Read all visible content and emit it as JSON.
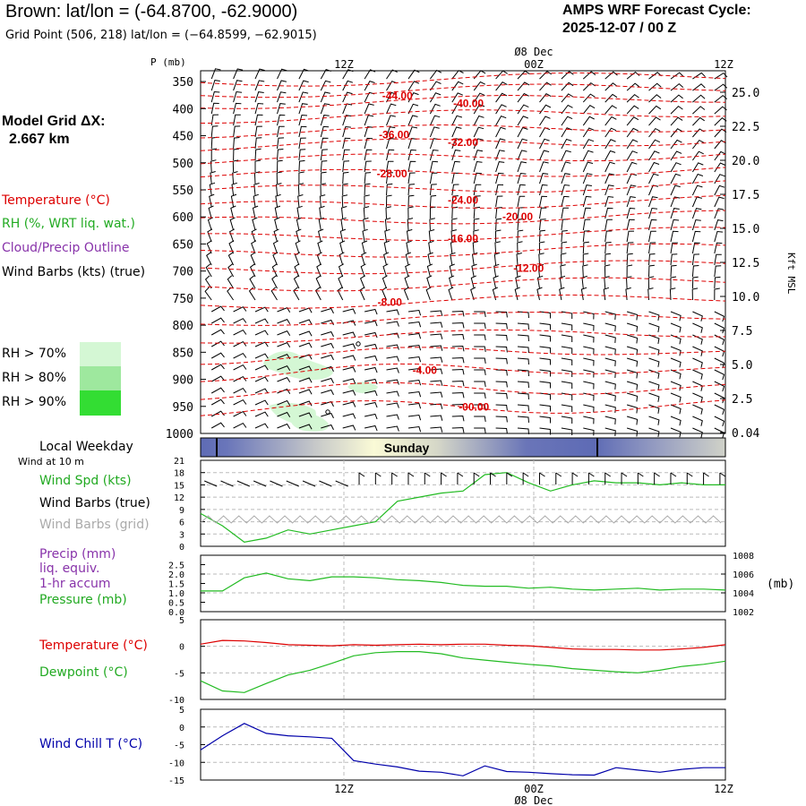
{
  "header": {
    "title": "Brown:  lat/lon = (-64.8700, -62.9000)",
    "grid_point": "Grid Point (506, 218) lat/lon = (−64.8599, −62.9015)",
    "cycle_line1": "AMPS WRF Forecast Cycle:",
    "cycle_line2": "2025-12-07 / 00  Z",
    "model_grid_line1": "Model Grid ΔX:",
    "model_grid_line2": "2.667 km"
  },
  "legend": {
    "temperature": "Temperature (°C)",
    "rh": "RH (%, WRT liq. wat.)",
    "cloud": "Cloud/Precip Outline",
    "wind_barbs": "Wind Barbs (kts) (true)",
    "rh70": "RH > 70%",
    "rh80": "RH > 80%",
    "rh90": "RH > 90%",
    "rh_colors": [
      "#d4f7d4",
      "#9ee89e",
      "#33dd33"
    ]
  },
  "time_axis": {
    "top_ticks": [
      "12Z",
      "00Z",
      "12Z"
    ],
    "date_label": "Ø8 Dec",
    "p_label": "P (mb)",
    "kft_label": "Kft MSL"
  },
  "weekday": {
    "label": "Local Weekday",
    "day": "Sunday",
    "wind_at": "Wind at 10 m"
  },
  "panel_labels": {
    "wind_spd": "Wind Spd (kts)",
    "wind_barbs_true": "Wind Barbs (true)",
    "wind_barbs_grid": "Wind Barbs (grid)",
    "precip": "Precip (mm)",
    "liq": "liq. equiv.",
    "accum": "1-hr accum",
    "pressure": "Pressure (mb)",
    "pressure_unit": "(mb)",
    "temperature": "Temperature (°C)",
    "dewpoint": "Dewpoint (°C)",
    "windchill": "Wind Chill T (°C)"
  },
  "colors": {
    "temp": "#dd0000",
    "green": "#22bb22",
    "blue": "#0000aa",
    "purple": "#8833aa",
    "gray": "#aaaaaa"
  },
  "chart_data": [
    {
      "type": "line",
      "name": "cross-section",
      "pressure_ticks": [
        "350",
        "400",
        "450",
        "500",
        "550",
        "600",
        "650",
        "700",
        "750",
        "800",
        "850",
        "900",
        "950",
        "1000"
      ],
      "kft_ticks": [
        "25.0",
        "22.5",
        "20.0",
        "17.5",
        "15.0",
        "12.5",
        "10.0",
        "7.5",
        "5.0",
        "2.5",
        "0.04"
      ],
      "isotherm_labels": [
        {
          "text": "-44.00",
          "hour": 18,
          "p": 383
        },
        {
          "text": "-40.00",
          "hour": 24.5,
          "p": 397
        },
        {
          "text": "-36.00",
          "hour": 17.7,
          "p": 455
        },
        {
          "text": "-32.00",
          "hour": 24,
          "p": 469
        },
        {
          "text": "-28.00",
          "hour": 17.5,
          "p": 527
        },
        {
          "text": "-24.00",
          "hour": 24,
          "p": 576
        },
        {
          "text": "-20.00",
          "hour": 29,
          "p": 606
        },
        {
          "text": "-16.00",
          "hour": 24,
          "p": 647
        },
        {
          "text": "-12.00",
          "hour": 30,
          "p": 701
        },
        {
          "text": "-8.00",
          "hour": 17.3,
          "p": 764
        },
        {
          "text": "-4.00",
          "hour": 20.5,
          "p": 890
        },
        {
          "text": "-00.00",
          "hour": 25,
          "p": 958
        }
      ]
    },
    {
      "type": "line",
      "name": "wind",
      "ylim": [
        0,
        21
      ],
      "y_ticks": [
        "0",
        "3",
        "6",
        "9",
        "12",
        "15",
        "18",
        "21"
      ],
      "hours": [
        0,
        2,
        4,
        6,
        8,
        10,
        12,
        14,
        16,
        18,
        20,
        22,
        24,
        26,
        28,
        30,
        32,
        34,
        36,
        38,
        40,
        42,
        44,
        46,
        48
      ],
      "values": [
        8,
        5,
        1,
        2,
        4,
        3,
        4,
        5,
        6,
        11,
        12,
        13,
        13.5,
        17.5,
        18,
        15.5,
        13.5,
        15,
        16,
        15.5,
        15.5,
        15,
        15.5,
        15,
        15
      ]
    },
    {
      "type": "line",
      "name": "pressure",
      "ylim": [
        1002,
        1008
      ],
      "y_ticks_left": [
        "0.0",
        "0.5",
        "1.0",
        "1.5",
        "2.0",
        "2.5"
      ],
      "y_ticks_right": [
        "1002",
        "1004",
        "1006",
        "1008"
      ],
      "hours": [
        0,
        2,
        4,
        6,
        8,
        10,
        12,
        14,
        16,
        18,
        20,
        22,
        24,
        26,
        28,
        30,
        32,
        34,
        36,
        38,
        40,
        42,
        44,
        46,
        48
      ],
      "values": [
        1004.2,
        1004.2,
        1005.6,
        1006.1,
        1005.5,
        1005.3,
        1005.7,
        1005.7,
        1005.6,
        1005.4,
        1005.3,
        1005.1,
        1004.8,
        1004.7,
        1004.7,
        1004.5,
        1004.6,
        1004.4,
        1004.3,
        1004.4,
        1004.5,
        1004.3,
        1004.4,
        1004.4,
        1004.3
      ]
    },
    {
      "type": "line",
      "name": "temperature-dewpoint",
      "ylim": [
        -10,
        5
      ],
      "y_ticks": [
        "5",
        "0",
        "-5",
        "-10"
      ],
      "hours": [
        0,
        2,
        4,
        6,
        8,
        10,
        12,
        14,
        16,
        18,
        20,
        22,
        24,
        26,
        28,
        30,
        32,
        34,
        36,
        38,
        40,
        42,
        44,
        46,
        48
      ],
      "series": [
        {
          "name": "Temperature",
          "values": [
            0.4,
            1.1,
            1.0,
            0.7,
            0.3,
            0.2,
            0.1,
            0.3,
            0.2,
            0.3,
            0.4,
            0.3,
            0.4,
            0.4,
            0.2,
            0.1,
            -0.2,
            -0.5,
            -0.6,
            -0.6,
            -0.7,
            -0.7,
            -0.5,
            -0.2,
            0.3
          ]
        },
        {
          "name": "Dewpoint",
          "values": [
            -6.5,
            -8.4,
            -8.7,
            -7.0,
            -5.4,
            -4.5,
            -3.2,
            -1.8,
            -1.2,
            -1.0,
            -1.0,
            -1.4,
            -2.2,
            -2.6,
            -3.0,
            -3.4,
            -3.7,
            -4.2,
            -4.5,
            -4.8,
            -5.0,
            -4.5,
            -3.8,
            -3.4,
            -2.8
          ]
        }
      ]
    },
    {
      "type": "line",
      "name": "wind-chill",
      "ylim": [
        -15,
        5
      ],
      "y_ticks": [
        "5",
        "0",
        "-5",
        "-10",
        "-15"
      ],
      "hours": [
        0,
        2,
        4,
        6,
        8,
        10,
        12,
        14,
        16,
        18,
        20,
        22,
        24,
        26,
        28,
        30,
        32,
        34,
        36,
        38,
        40,
        42,
        44,
        46,
        48
      ],
      "values": [
        -6.5,
        -2.5,
        1.0,
        -1.8,
        -2.5,
        -2.8,
        -3.2,
        -9.5,
        -10.5,
        -11.3,
        -12.5,
        -12.8,
        -13.8,
        -11.0,
        -12.6,
        -12.8,
        -13.2,
        -13.5,
        -13.6,
        -11.5,
        -12.2,
        -12.8,
        -12.0,
        -11.5,
        -11.5
      ]
    }
  ]
}
